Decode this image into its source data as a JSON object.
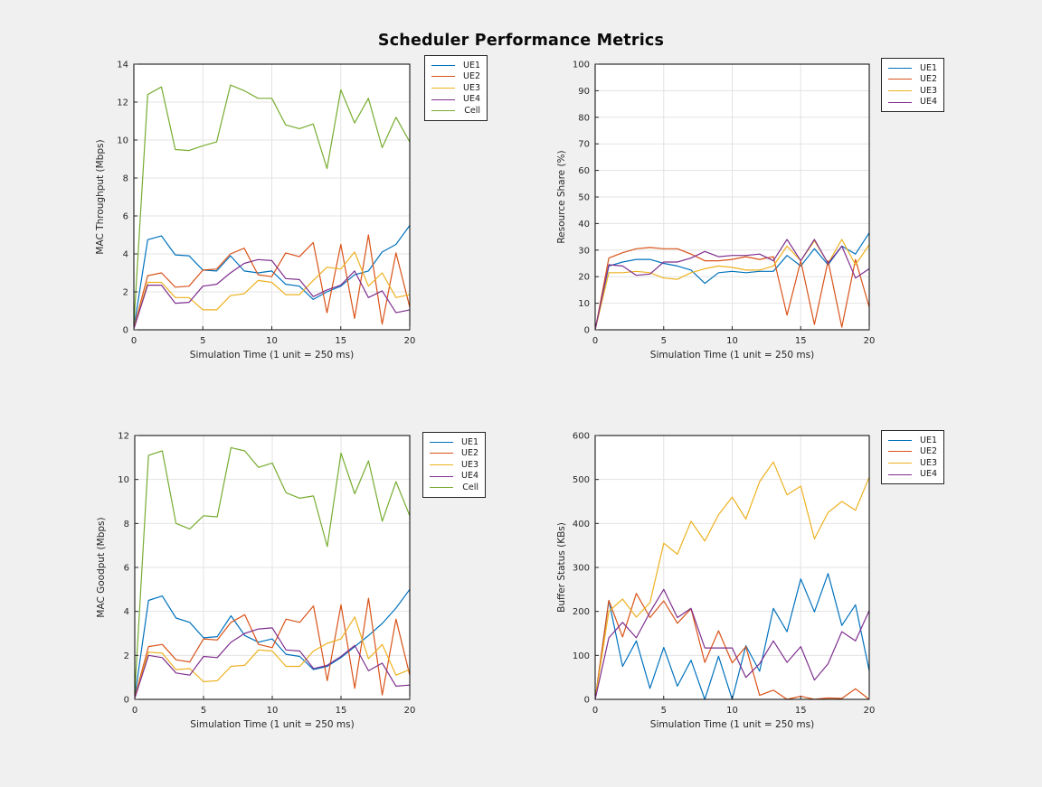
{
  "title": "Scheduler Performance Metrics",
  "colors": {
    "UE1": "#0072BD",
    "UE2": "#D95319",
    "UE3": "#EDB120",
    "UE4": "#7E2F8E",
    "Cell": "#77AC30",
    "background": "#F0F0F0",
    "axes_background": "#FFFFFF",
    "grid": "#E3E3E3",
    "axes_box": "#000000",
    "tick_text": "#262626"
  },
  "chart_data": [
    {
      "type": "line",
      "title": "",
      "xlabel": "Simulation Time (1 unit = 250 ms)",
      "ylabel": "MAC Throughput (Mbps)",
      "xlim": [
        0,
        20
      ],
      "ylim": [
        0,
        14
      ],
      "xticks": [
        0,
        5,
        10,
        15,
        20
      ],
      "yticks": [
        0,
        2,
        4,
        6,
        8,
        10,
        12,
        14
      ],
      "grid": true,
      "legend_position": "outside-top-right",
      "x": [
        0,
        1,
        2,
        3,
        4,
        5,
        6,
        7,
        8,
        9,
        10,
        11,
        12,
        13,
        14,
        15,
        16,
        17,
        18,
        19,
        20
      ],
      "series": [
        {
          "name": "UE1",
          "color": "#0072BD",
          "values": [
            0.1,
            4.75,
            4.95,
            3.95,
            3.9,
            3.15,
            3.1,
            3.9,
            3.1,
            3.0,
            3.1,
            2.4,
            2.3,
            1.6,
            2.0,
            2.3,
            2.9,
            3.1,
            4.1,
            4.5,
            5.5
          ]
        },
        {
          "name": "UE2",
          "color": "#D95319",
          "values": [
            0.1,
            2.85,
            3.0,
            2.25,
            2.3,
            3.15,
            3.2,
            4.0,
            4.3,
            2.9,
            2.8,
            4.05,
            3.85,
            4.6,
            0.9,
            4.5,
            0.6,
            5.0,
            0.3,
            4.05,
            1.2
          ]
        },
        {
          "name": "UE3",
          "color": "#EDB120",
          "values": [
            0.05,
            2.5,
            2.5,
            1.7,
            1.7,
            1.05,
            1.05,
            1.8,
            1.9,
            2.6,
            2.5,
            1.85,
            1.85,
            2.6,
            3.3,
            3.2,
            4.1,
            2.3,
            3.0,
            1.7,
            1.85
          ]
        },
        {
          "name": "UE4",
          "color": "#7E2F8E",
          "values": [
            0.05,
            2.35,
            2.35,
            1.4,
            1.45,
            2.3,
            2.4,
            3.0,
            3.5,
            3.7,
            3.65,
            2.7,
            2.65,
            1.75,
            2.1,
            2.35,
            3.1,
            1.7,
            2.05,
            0.9,
            1.05
          ]
        },
        {
          "name": "Cell",
          "color": "#77AC30",
          "values": [
            0.3,
            12.4,
            12.8,
            9.5,
            9.45,
            9.7,
            9.9,
            12.9,
            12.6,
            12.2,
            12.2,
            10.8,
            10.6,
            10.85,
            8.5,
            12.65,
            10.9,
            12.2,
            9.6,
            11.2,
            9.9
          ]
        }
      ]
    },
    {
      "type": "line",
      "title": "",
      "xlabel": "Simulation Time (1 unit = 250 ms)",
      "ylabel": "Resource Share (%)",
      "xlim": [
        0,
        20
      ],
      "ylim": [
        0,
        100
      ],
      "xticks": [
        0,
        5,
        10,
        15,
        20
      ],
      "yticks": [
        0,
        10,
        20,
        30,
        40,
        50,
        60,
        70,
        80,
        90,
        100
      ],
      "grid": true,
      "legend_position": "outside-top-right",
      "x": [
        0,
        1,
        2,
        3,
        4,
        5,
        6,
        7,
        8,
        9,
        10,
        11,
        12,
        13,
        14,
        15,
        16,
        17,
        18,
        19,
        20
      ],
      "series": [
        {
          "name": "UE1",
          "color": "#0072BD",
          "values": [
            0,
            24,
            25.5,
            26.5,
            26.5,
            25,
            24,
            22.5,
            17.5,
            21.5,
            22,
            21.5,
            22,
            22,
            28,
            24,
            30.5,
            24.5,
            31.5,
            28.5,
            36.5
          ]
        },
        {
          "name": "UE2",
          "color": "#D95319",
          "values": [
            0,
            27,
            29,
            30.5,
            31,
            30.5,
            30.5,
            28.5,
            26,
            26,
            26.5,
            27.5,
            26.5,
            27.5,
            5.5,
            26,
            2,
            26,
            1,
            26.5,
            8.5
          ]
        },
        {
          "name": "UE3",
          "color": "#EDB120",
          "values": [
            0,
            21.5,
            21.5,
            22,
            21.5,
            19.5,
            19,
            21.5,
            23,
            24,
            23.5,
            22.5,
            22.5,
            24,
            31.5,
            26,
            33.5,
            25,
            34,
            24.5,
            32
          ]
        },
        {
          "name": "UE4",
          "color": "#7E2F8E",
          "values": [
            0,
            24.5,
            24,
            20.5,
            21,
            25.5,
            25.5,
            27,
            29.5,
            27.5,
            28,
            28,
            28.5,
            26,
            34,
            26,
            34,
            25,
            31.5,
            19.5,
            23
          ]
        }
      ]
    },
    {
      "type": "line",
      "title": "",
      "xlabel": "Simulation Time (1 unit = 250 ms)",
      "ylabel": "MAC Goodput (Mbps)",
      "xlim": [
        0,
        20
      ],
      "ylim": [
        0,
        12
      ],
      "xticks": [
        0,
        5,
        10,
        15,
        20
      ],
      "yticks": [
        0,
        2,
        4,
        6,
        8,
        10,
        12
      ],
      "grid": true,
      "legend_position": "outside-top-right",
      "x": [
        0,
        1,
        2,
        3,
        4,
        5,
        6,
        7,
        8,
        9,
        10,
        11,
        12,
        13,
        14,
        15,
        16,
        17,
        18,
        19,
        20
      ],
      "series": [
        {
          "name": "UE1",
          "color": "#0072BD",
          "values": [
            0.1,
            4.5,
            4.7,
            3.7,
            3.5,
            2.8,
            2.85,
            3.8,
            2.9,
            2.6,
            2.75,
            2.05,
            1.95,
            1.35,
            1.5,
            1.9,
            2.4,
            2.9,
            3.45,
            4.15,
            5.0
          ]
        },
        {
          "name": "UE2",
          "color": "#D95319",
          "values": [
            0.1,
            2.4,
            2.5,
            1.8,
            1.7,
            2.75,
            2.7,
            3.5,
            3.85,
            2.5,
            2.35,
            3.65,
            3.5,
            4.25,
            0.85,
            4.3,
            0.5,
            4.6,
            0.2,
            3.65,
            1.1
          ]
        },
        {
          "name": "UE3",
          "color": "#EDB120",
          "values": [
            0.05,
            2.15,
            2.1,
            1.35,
            1.4,
            0.8,
            0.85,
            1.5,
            1.55,
            2.25,
            2.2,
            1.5,
            1.5,
            2.2,
            2.55,
            2.75,
            3.75,
            1.85,
            2.5,
            1.1,
            1.35
          ]
        },
        {
          "name": "UE4",
          "color": "#7E2F8E",
          "values": [
            0.05,
            2.0,
            1.9,
            1.2,
            1.1,
            1.95,
            1.9,
            2.6,
            3.0,
            3.2,
            3.25,
            2.25,
            2.2,
            1.4,
            1.55,
            1.95,
            2.45,
            1.3,
            1.65,
            0.6,
            0.65
          ]
        },
        {
          "name": "Cell",
          "color": "#77AC30",
          "values": [
            0.3,
            11.1,
            11.3,
            8.0,
            7.75,
            8.35,
            8.3,
            11.45,
            11.3,
            10.55,
            10.75,
            9.4,
            9.15,
            9.25,
            6.95,
            11.2,
            9.35,
            10.85,
            8.1,
            9.9,
            8.35
          ]
        }
      ]
    },
    {
      "type": "line",
      "title": "",
      "xlabel": "Simulation Time (1 unit = 250 ms)",
      "ylabel": "Buffer Status (KBs)",
      "xlim": [
        0,
        20
      ],
      "ylim": [
        0,
        600
      ],
      "xticks": [
        0,
        5,
        10,
        15,
        20
      ],
      "yticks": [
        0,
        100,
        200,
        300,
        400,
        500,
        600
      ],
      "grid": true,
      "legend_position": "outside-top-right",
      "x": [
        0,
        1,
        2,
        3,
        4,
        5,
        6,
        7,
        8,
        9,
        10,
        11,
        12,
        13,
        14,
        15,
        16,
        17,
        18,
        19,
        20
      ],
      "series": [
        {
          "name": "UE1",
          "color": "#0072BD",
          "values": [
            0,
            225,
            75,
            133,
            25,
            118,
            30,
            89,
            0,
            98,
            0,
            122,
            64,
            207,
            154,
            274,
            199,
            286,
            168,
            215,
            65
          ]
        },
        {
          "name": "UE2",
          "color": "#D95319",
          "values": [
            0,
            225,
            142,
            241,
            186,
            224,
            173,
            206,
            84,
            156,
            83,
            120,
            9,
            21,
            0,
            7,
            0,
            3,
            2,
            24,
            0
          ]
        },
        {
          "name": "UE3",
          "color": "#EDB120",
          "values": [
            0,
            200,
            228,
            187,
            220,
            355,
            330,
            405,
            360,
            420,
            460,
            410,
            495,
            540,
            465,
            485,
            365,
            425,
            450,
            430,
            505
          ]
        },
        {
          "name": "UE4",
          "color": "#7E2F8E",
          "values": [
            0,
            140,
            175,
            140,
            198,
            250,
            186,
            207,
            117,
            117,
            117,
            50,
            81,
            133,
            84,
            120,
            44,
            81,
            154,
            133,
            202
          ]
        }
      ]
    }
  ]
}
